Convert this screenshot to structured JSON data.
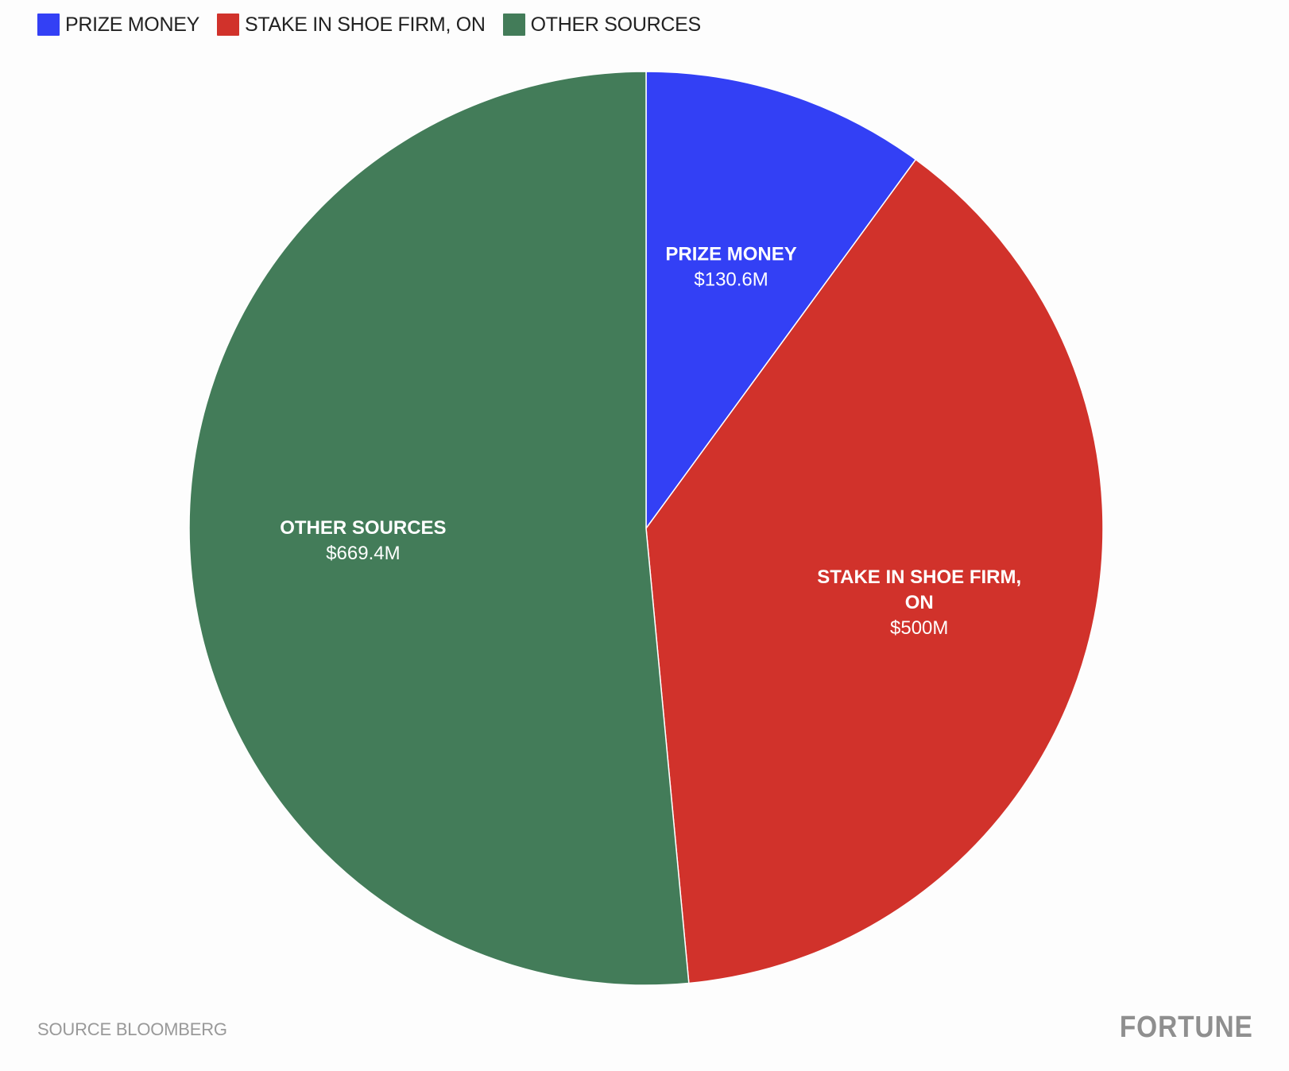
{
  "legend": {
    "items": [
      {
        "label": "PRIZE MONEY",
        "color": "#3340f5"
      },
      {
        "label": "STAKE IN SHOE FIRM, ON",
        "color": "#d1322b"
      },
      {
        "label": "OTHER SOURCES",
        "color": "#437c59"
      }
    ]
  },
  "chart_data": {
    "type": "pie",
    "slices": [
      {
        "name": "PRIZE MONEY",
        "value": 130.6,
        "value_label": "$130.6M",
        "color": "#3340f5"
      },
      {
        "name": "STAKE IN SHOE FIRM, ON",
        "value": 500,
        "value_label": "$500M",
        "color": "#d1322b"
      },
      {
        "name": "OTHER SOURCES",
        "value": 669.4,
        "value_label": "$669.4M",
        "color": "#437c59"
      }
    ],
    "start_angle": "12 o'clock",
    "direction": "clockwise",
    "legend_position": "top-left",
    "units": "USD millions"
  },
  "footer": {
    "source": "SOURCE BLOOMBERG",
    "brand": "FORTUNE"
  }
}
